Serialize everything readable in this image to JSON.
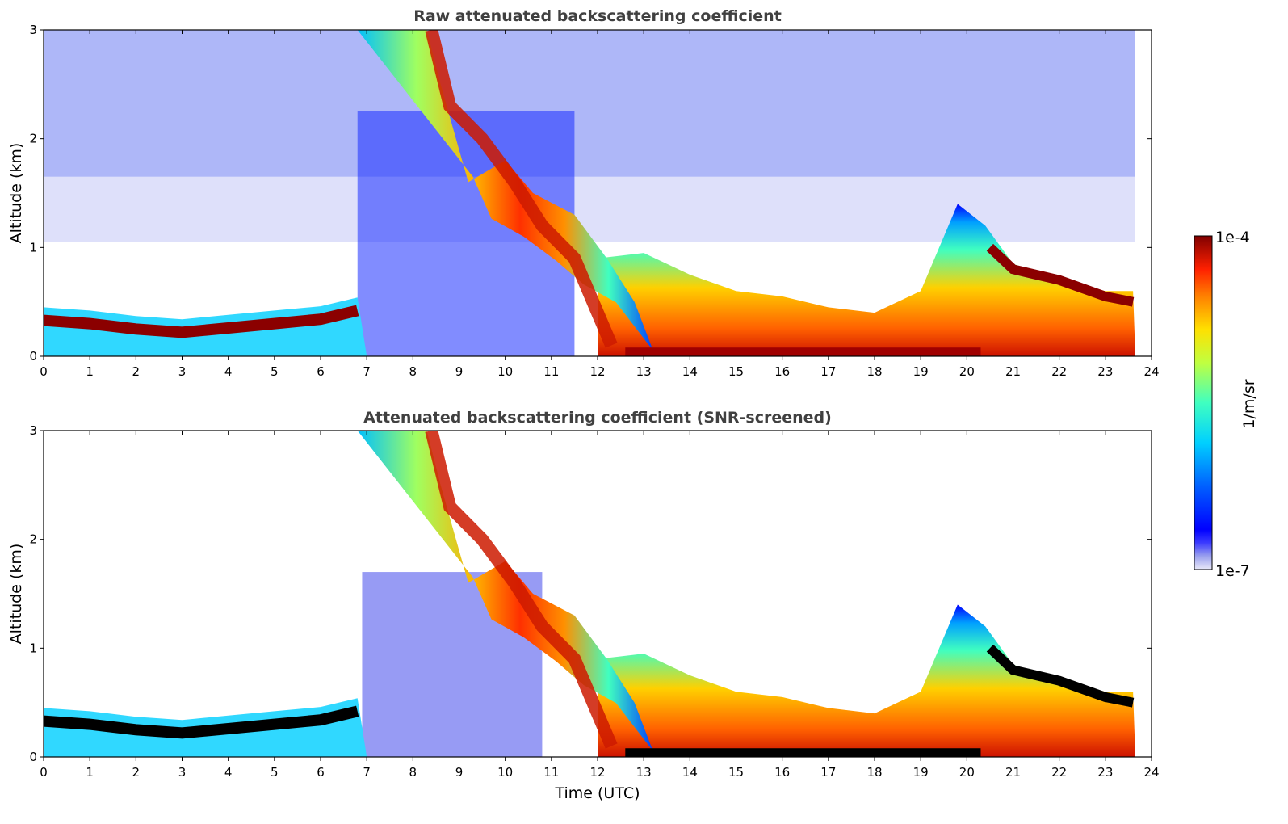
{
  "chart_data": [
    {
      "type": "heatmap",
      "title": "Raw attenuated backscattering coefficient",
      "xlabel": "",
      "ylabel": "Altitude (km)",
      "xlim": [
        0,
        24
      ],
      "ylim": [
        0,
        3
      ],
      "xticks": [
        "0",
        "1",
        "2",
        "3",
        "4",
        "5",
        "6",
        "7",
        "8",
        "9",
        "10",
        "11",
        "12",
        "13",
        "14",
        "15",
        "16",
        "17",
        "18",
        "19",
        "20",
        "21",
        "22",
        "23",
        "24"
      ],
      "yticks": [
        "0",
        "1",
        "2",
        "3"
      ],
      "screened": false
    },
    {
      "type": "heatmap",
      "title": "Attenuated backscattering coefficient (SNR-screened)",
      "xlabel": "Time (UTC)",
      "ylabel": "Altitude (km)",
      "xlim": [
        0,
        24
      ],
      "ylim": [
        0,
        3
      ],
      "xticks": [
        "0",
        "1",
        "2",
        "3",
        "4",
        "5",
        "6",
        "7",
        "8",
        "9",
        "10",
        "11",
        "12",
        "13",
        "14",
        "15",
        "16",
        "17",
        "18",
        "19",
        "20",
        "21",
        "22",
        "23",
        "24"
      ],
      "yticks": [
        "0",
        "1",
        "2",
        "3"
      ],
      "screened": true
    }
  ],
  "colorbar": {
    "label": "1/m/sr",
    "max_label": "1e-4",
    "min_label": "1e-7",
    "scale": "log",
    "colormap": "jet"
  },
  "features": {
    "aerosol_layer_start": [
      [
        0,
        0.33
      ],
      [
        1,
        0.3
      ],
      [
        2,
        0.25
      ],
      [
        3,
        0.22
      ],
      [
        4,
        0.26
      ],
      [
        5,
        0.3
      ],
      [
        6,
        0.34
      ],
      [
        6.8,
        0.42
      ]
    ],
    "cloud_descent_upper": [
      [
        6.8,
        3.0
      ],
      [
        8.3,
        3.0
      ],
      [
        8.6,
        2.5
      ],
      [
        9.2,
        1.6
      ],
      [
        10,
        1.8
      ],
      [
        10.6,
        1.5
      ],
      [
        11.5,
        1.3
      ],
      [
        12.2,
        0.9
      ],
      [
        12.8,
        0.5
      ]
    ],
    "cloud_descent_core": [
      [
        8.4,
        3.0
      ],
      [
        8.8,
        2.3
      ],
      [
        9.5,
        2.0
      ],
      [
        10.2,
        1.6
      ],
      [
        10.8,
        1.2
      ],
      [
        11.5,
        0.9
      ],
      [
        12.0,
        0.4
      ],
      [
        12.3,
        0.1
      ]
    ],
    "boundary_layer_top": [
      [
        12,
        0.9
      ],
      [
        13,
        0.95
      ],
      [
        14,
        0.75
      ],
      [
        15,
        0.6
      ],
      [
        16,
        0.55
      ],
      [
        17,
        0.45
      ],
      [
        18,
        0.4
      ],
      [
        19,
        0.6
      ],
      [
        19.8,
        1.4
      ],
      [
        20.4,
        1.2
      ],
      [
        21,
        0.85
      ],
      [
        22,
        0.7
      ],
      [
        23,
        0.6
      ],
      [
        23.6,
        0.6
      ]
    ],
    "aerosol_layer_end": [
      [
        20.5,
        1.0
      ],
      [
        21,
        0.8
      ],
      [
        22,
        0.7
      ],
      [
        23,
        0.55
      ],
      [
        23.6,
        0.5
      ]
    ],
    "data_end_hour": 23.65
  }
}
